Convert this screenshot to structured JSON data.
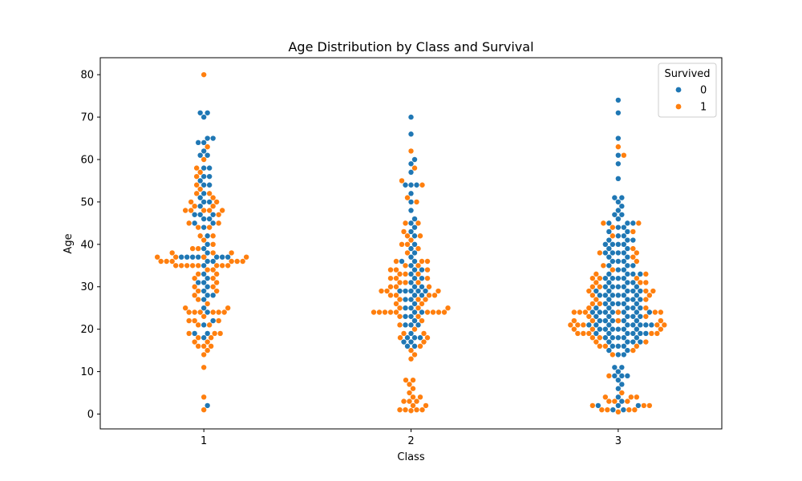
{
  "chart_data": {
    "type": "scatter",
    "subtype": "swarm",
    "title": "Age Distribution by Class and Survival",
    "xlabel": "Class",
    "ylabel": "Age",
    "categories": [
      "1",
      "2",
      "3"
    ],
    "ylim": [
      -3.5,
      84
    ],
    "yticks": [
      0,
      10,
      20,
      30,
      40,
      50,
      60,
      70,
      80
    ],
    "grid": false,
    "legend": {
      "title": "Survived",
      "placement": "top-right"
    },
    "series": [
      {
        "name": "0",
        "color": "#1f77b4",
        "groups": [
          {
            "category": "1",
            "ages": [
              71,
              71,
              70,
              65,
              65,
              64,
              64,
              62,
              61,
              61,
              58,
              58,
              56,
              56,
              55,
              54,
              54,
              52,
              51,
              50,
              50,
              49,
              47,
              47,
              47,
              46,
              46,
              45,
              45,
              44,
              42,
              40,
              39,
              38,
              37,
              37,
              37,
              37,
              37,
              37,
              37,
              37,
              36,
              36,
              35,
              33,
              32,
              31,
              31,
              30,
              29,
              28,
              28,
              27,
              25,
              24,
              22,
              21,
              19,
              19,
              18,
              2
            ]
          },
          {
            "category": "2",
            "ages": [
              70,
              66,
              60,
              59,
              57,
              54,
              54,
              54,
              52,
              50,
              48,
              46,
              45,
              44,
              43,
              42,
              40,
              39,
              38,
              37,
              36,
              36,
              35,
              34,
              34,
              33,
              32,
              32,
              31,
              30,
              30,
              29,
              29,
              29,
              29,
              29,
              28,
              28,
              27,
              27,
              26,
              25,
              25,
              24,
              24,
              23,
              23,
              22,
              21,
              21,
              21,
              19,
              18,
              18,
              18,
              17,
              17,
              16,
              16
            ]
          },
          {
            "category": "3",
            "ages": [
              74,
              71,
              65,
              61,
              59,
              55.5,
              51,
              51,
              50,
              49,
              48,
              47,
              47,
              46,
              45,
              45,
              45,
              44,
              44,
              43,
              43,
              42,
              42,
              41,
              41,
              41,
              40,
              40,
              40,
              40,
              39,
              39,
              38,
              38,
              38,
              38,
              37,
              37,
              36,
              36,
              36,
              35,
              35,
              35,
              34,
              34,
              33,
              33,
              33,
              33,
              32,
              32,
              32,
              32,
              31,
              31,
              31,
              30,
              30,
              30,
              30,
              30,
              29,
              29,
              29,
              29,
              29,
              28,
              28,
              28,
              28,
              28,
              28,
              27,
              27,
              27,
              27,
              26,
              26,
              26,
              26,
              26,
              25,
              25,
              25,
              25,
              25,
              24,
              24,
              24,
              24,
              24,
              24,
              24,
              24,
              23,
              23,
              23,
              23,
              23,
              22,
              22,
              22,
              22,
              22,
              22,
              21,
              21,
              21,
              21,
              21,
              21,
              21,
              21,
              20,
              20,
              20,
              20,
              20,
              20,
              19,
              19,
              19,
              19,
              19,
              19,
              18,
              18,
              18,
              18,
              18,
              17,
              17,
              17,
              17,
              16,
              16,
              16,
              15,
              15,
              14,
              14,
              11,
              11,
              10,
              9,
              9,
              9,
              8,
              7,
              6,
              4,
              3,
              2,
              2,
              2,
              1,
              1
            ]
          }
        ]
      },
      {
        "name": "1",
        "color": "#ff7f0e",
        "groups": [
          {
            "category": "1",
            "ages": [
              80,
              63,
              60,
              58,
              57,
              56,
              54,
              53,
              52,
              52,
              51,
              50,
              50,
              49,
              49,
              48,
              48,
              48,
              48,
              48,
              47,
              45,
              45,
              44,
              44,
              42,
              42,
              41,
              40,
              39,
              39,
              38,
              38,
              38,
              37,
              37,
              37,
              37,
              37,
              36,
              36,
              36,
              36,
              36,
              36,
              35,
              35,
              35,
              35,
              35,
              35,
              35,
              35,
              34,
              34,
              33,
              33,
              32,
              32,
              31,
              30,
              30,
              29,
              29,
              28,
              27,
              26,
              25,
              25,
              24,
              24,
              24,
              24,
              24,
              24,
              23,
              22,
              22,
              22,
              21,
              21,
              19,
              19,
              19,
              18,
              18,
              17,
              17,
              16,
              16,
              16,
              15,
              14,
              11,
              4,
              1
            ]
          },
          {
            "category": "2",
            "ages": [
              62,
              58,
              55,
              54,
              51,
              50,
              45,
              45,
              43,
              42,
              42,
              41,
              40,
              40,
              39,
              38,
              36,
              36,
              36,
              35,
              35,
              34,
              34,
              34,
              33,
              33,
              33,
              32,
              32,
              32,
              31,
              31,
              31,
              30,
              30,
              30,
              29,
              29,
              29,
              28,
              28,
              28,
              28,
              27,
              27,
              27,
              26,
              26,
              25,
              25,
              25,
              24,
              24,
              24,
              24,
              24,
              24,
              24,
              24,
              24,
              23,
              23,
              22,
              21,
              20,
              19,
              19,
              18,
              18,
              17,
              16,
              15,
              14,
              13,
              8,
              8,
              7,
              6,
              5,
              4,
              4,
              3,
              3,
              3,
              2,
              2,
              1,
              1,
              1,
              1,
              0.8
            ]
          },
          {
            "category": "3",
            "ages": [
              63,
              61,
              45,
              45,
              44,
              43,
              42,
              39,
              38,
              38,
              37,
              36,
              35,
              34,
              33,
              33,
              32,
              32,
              32,
              31,
              31,
              31,
              30,
              30,
              29,
              29,
              29,
              28,
              28,
              27,
              27,
              26,
              26,
              25,
              25,
              24,
              24,
              24,
              24,
              24,
              24,
              23,
              23,
              22,
              22,
              22,
              22,
              21,
              21,
              21,
              21,
              21,
              20,
              20,
              20,
              19,
              19,
              19,
              19,
              19,
              18,
              18,
              17,
              17,
              16,
              16,
              16,
              15,
              14,
              9,
              5,
              4,
              4,
              4,
              3,
              3,
              3,
              2,
              2,
              2,
              1,
              1,
              1,
              1,
              0.5
            ]
          }
        ]
      }
    ]
  }
}
